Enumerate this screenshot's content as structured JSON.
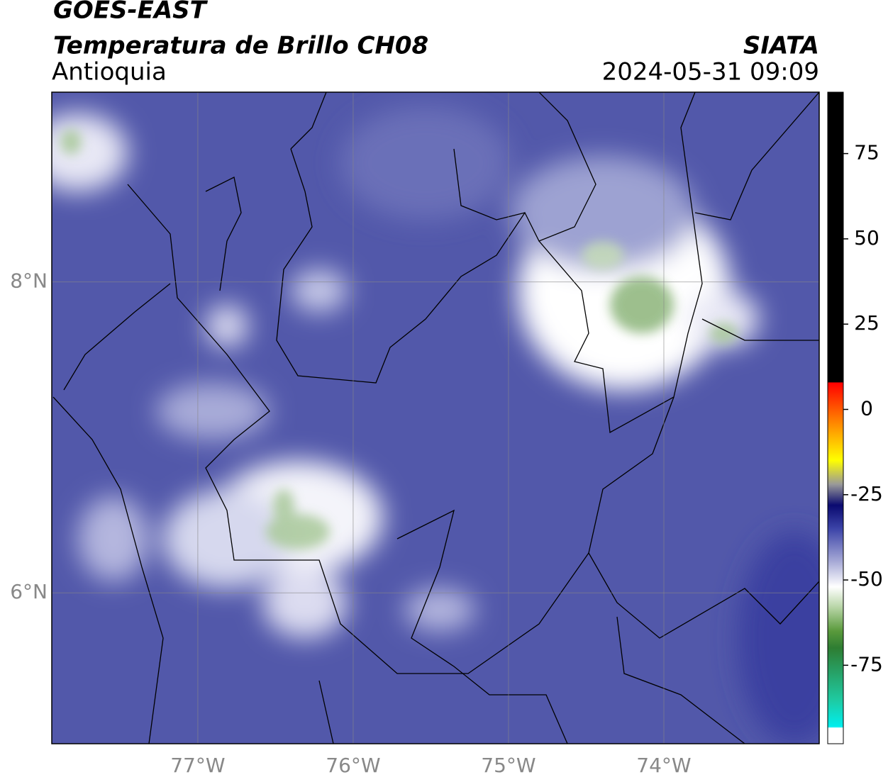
{
  "chart_data": {
    "type": "map",
    "title": "GOES-EAST",
    "subtitle": "Temperatura de Brillo CH08",
    "region": "Antioquia",
    "source": "SIATA",
    "timestamp": "2024-05-31 09:09",
    "xlim": [
      -77.94,
      -73.0
    ],
    "ylim": [
      5.03,
      9.22
    ],
    "xticks": [
      {
        "value": -77,
        "label": "77°W"
      },
      {
        "value": -76,
        "label": "76°W"
      },
      {
        "value": -75,
        "label": "75°W"
      },
      {
        "value": -74,
        "label": "74°W"
      }
    ],
    "yticks": [
      {
        "value": 6,
        "label": "6°N"
      },
      {
        "value": 8,
        "label": "8°N"
      }
    ],
    "grid": true,
    "clim": [
      -98,
      93
    ],
    "cticks": [
      -75,
      -50,
      -25,
      0,
      25,
      50,
      75
    ]
  }
}
